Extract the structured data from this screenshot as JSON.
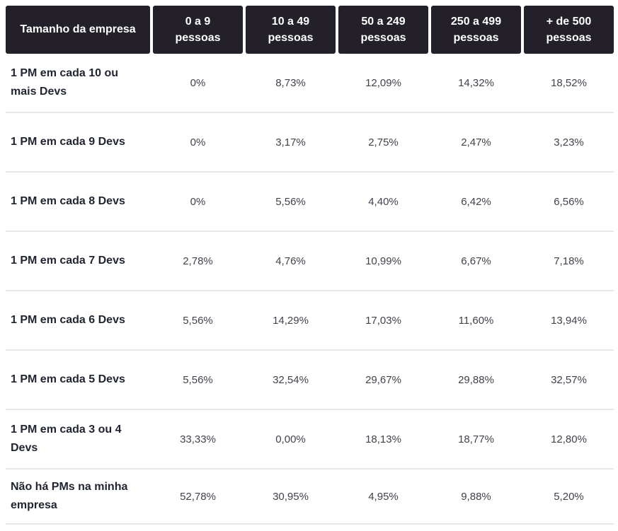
{
  "colors": {
    "header_bg": "#232029",
    "header_text": "#ffffff",
    "label_text": "#1f2430",
    "value_text": "#40434c",
    "divider": "#e8e8ea",
    "background": "#ffffff"
  },
  "table": {
    "header": {
      "col0": "Tamanho da empresa",
      "cols": [
        {
          "line1": "0 a 9",
          "line2": "pessoas"
        },
        {
          "line1": "10 a 49",
          "line2": "pessoas"
        },
        {
          "line1": "50 a 249",
          "line2": "pessoas"
        },
        {
          "line1": "250 a 499",
          "line2": "pessoas"
        },
        {
          "line1": "+ de 500",
          "line2": "pessoas"
        }
      ]
    },
    "rows": [
      {
        "label": "1 PM em cada 10 ou mais Devs",
        "values": [
          "0%",
          "8,73%",
          "12,09%",
          "14,32%",
          "18,52%"
        ]
      },
      {
        "label": "1 PM em cada 9 Devs",
        "values": [
          "0%",
          "3,17%",
          "2,75%",
          "2,47%",
          "3,23%"
        ]
      },
      {
        "label": "1 PM em cada 8 Devs",
        "values": [
          "0%",
          "5,56%",
          "4,40%",
          "6,42%",
          "6,56%"
        ]
      },
      {
        "label": "1 PM em cada 7 Devs",
        "values": [
          "2,78%",
          "4,76%",
          "10,99%",
          "6,67%",
          "7,18%"
        ]
      },
      {
        "label": "1 PM em cada 6 Devs",
        "values": [
          "5,56%",
          "14,29%",
          "17,03%",
          "11,60%",
          "13,94%"
        ]
      },
      {
        "label": "1 PM em cada 5 Devs",
        "values": [
          "5,56%",
          "32,54%",
          "29,67%",
          "29,88%",
          "32,57%"
        ]
      },
      {
        "label": "1 PM em cada 3 ou 4 Devs",
        "values": [
          "33,33%",
          "0,00%",
          "18,13%",
          "18,77%",
          "12,80%"
        ]
      },
      {
        "label": "Não há PMs na minha empresa",
        "values": [
          "52,78%",
          "30,95%",
          "4,95%",
          "9,88%",
          "5,20%"
        ]
      }
    ]
  },
  "chart_data": {
    "type": "table",
    "title": "",
    "columns": [
      "Tamanho da empresa",
      "0 a 9 pessoas",
      "10 a 49 pessoas",
      "50 a 249 pessoas",
      "250 a 499 pessoas",
      "+ de 500 pessoas"
    ],
    "value_format": "percent, comma decimal separator (pt-BR)",
    "rows": [
      {
        "label": "1 PM em cada 10 ou mais Devs",
        "values_pct": [
          0,
          8.73,
          12.09,
          14.32,
          18.52
        ]
      },
      {
        "label": "1 PM em cada 9 Devs",
        "values_pct": [
          0,
          3.17,
          2.75,
          2.47,
          3.23
        ]
      },
      {
        "label": "1 PM em cada 8 Devs",
        "values_pct": [
          0,
          5.56,
          4.4,
          6.42,
          6.56
        ]
      },
      {
        "label": "1 PM em cada 7 Devs",
        "values_pct": [
          2.78,
          4.76,
          10.99,
          6.67,
          7.18
        ]
      },
      {
        "label": "1 PM em cada 6 Devs",
        "values_pct": [
          5.56,
          14.29,
          17.03,
          11.6,
          13.94
        ]
      },
      {
        "label": "1 PM em cada 5 Devs",
        "values_pct": [
          5.56,
          32.54,
          29.67,
          29.88,
          32.57
        ]
      },
      {
        "label": "1 PM em cada 3 ou 4 Devs",
        "values_pct": [
          33.33,
          0.0,
          18.13,
          18.77,
          12.8
        ]
      },
      {
        "label": "Não há PMs na minha empresa",
        "values_pct": [
          52.78,
          30.95,
          4.95,
          9.88,
          5.2
        ]
      }
    ]
  }
}
